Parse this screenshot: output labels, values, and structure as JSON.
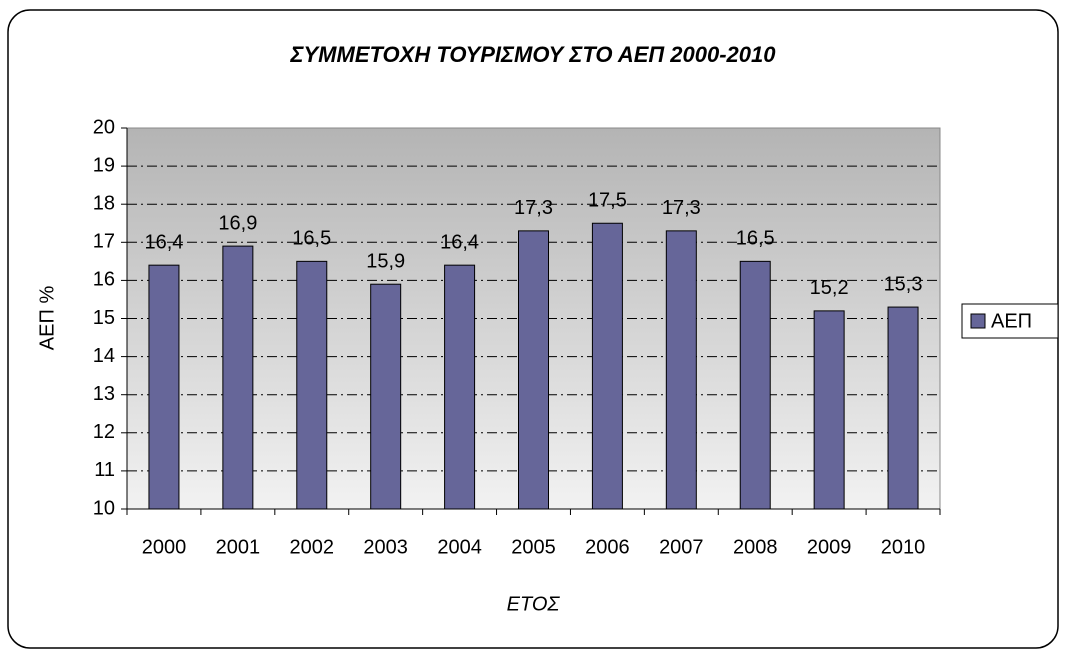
{
  "chart_data": {
    "type": "bar",
    "title": "ΣΥΜΜΕΤΟΧΗ ΤΟΥΡΙΣΜΟΥ ΣΤΟ ΑΕΠ 2000-2010",
    "x_label": "ΕΤΟΣ",
    "y_label": "ΑΕΠ %",
    "categories": [
      "2000",
      "2001",
      "2002",
      "2003",
      "2004",
      "2005",
      "2006",
      "2007",
      "2008",
      "2009",
      "2010"
    ],
    "series": [
      {
        "name": "ΑΕΠ",
        "color": "#666699",
        "values": [
          16.4,
          16.9,
          16.5,
          15.9,
          16.4,
          17.3,
          17.5,
          17.3,
          16.5,
          15.2,
          15.3
        ],
        "value_labels": [
          "16,4",
          "16,9",
          "16,5",
          "15,9",
          "16,4",
          "17,3",
          "17,5",
          "17,3",
          "16,5",
          "15,2",
          "15,3"
        ]
      }
    ],
    "ylim": [
      10,
      20
    ],
    "yticks": [
      10,
      11,
      12,
      13,
      14,
      15,
      16,
      17,
      18,
      19,
      20
    ],
    "grid": true,
    "legend": "right"
  }
}
